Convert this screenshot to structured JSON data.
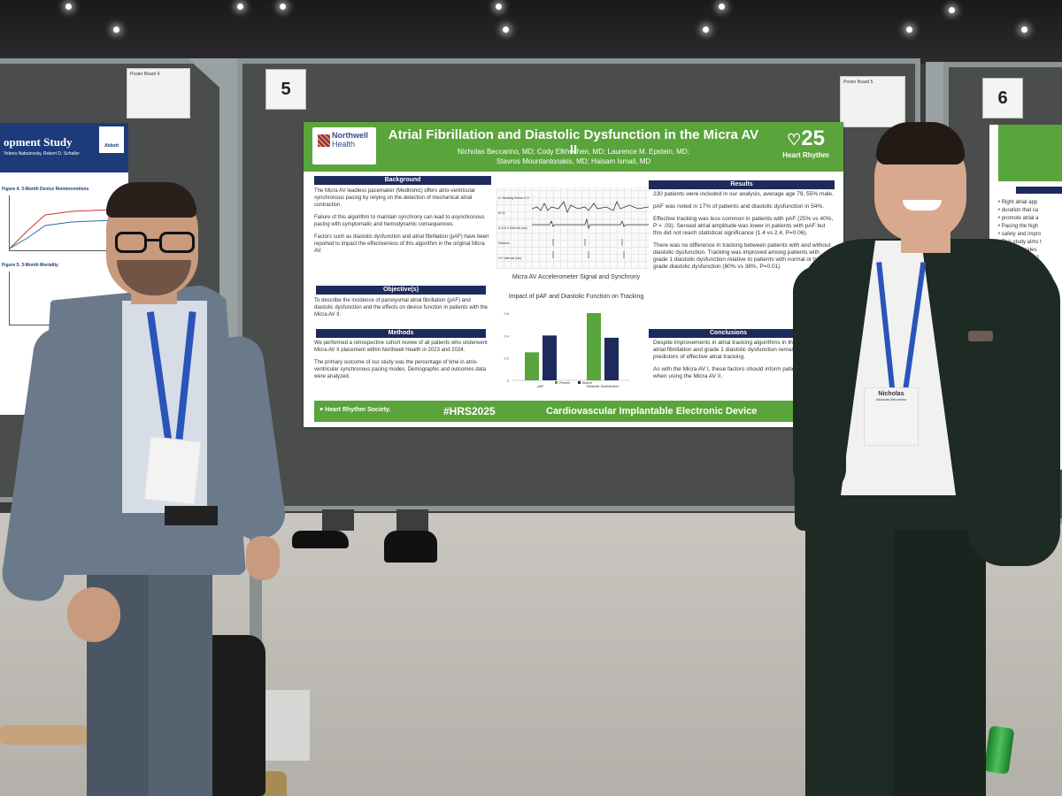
{
  "scene": {
    "left_board_number": "5",
    "right_board_number": "6",
    "left_poster_card_label": "Poster Board 4",
    "right_poster_card_label": "Poster Board 5"
  },
  "left_poster": {
    "title_fragment": "opment Study",
    "authors_fragment": "Yelena Nabutovsky, Robert D. Schaller",
    "sponsor": "Abbott",
    "figure_label_1": "Figure 4. 3-Month Device Reinterventions",
    "figure_label_2": "Figure 5. 3-Month Mortality"
  },
  "poster": {
    "institution_line1": "Northwell",
    "institution_line2": "Health",
    "title": "Atrial Fibrillation and Diastolic Dysfunction in the Micra AV II",
    "authors_line1": "Nicholas Beccarino, MD; Cody Elkhechen, MD; Laurence M. Epstein, MD;",
    "authors_line2": "Stavros Mountantonakis, MD; Haisam Ismail, MD",
    "heart_rhythm_number": "25",
    "heart_rhythm_name": "Heart Rhythm",
    "background_heading": "Background",
    "background_p1": "The Micra AV leadless pacemaker (Medtronic) offers atrio-ventricular synchronous pacing by relying on the detection of mechanical atrial contraction.",
    "background_p2": "Failure of this algorithm to maintain synchrony can lead to asynchronous pacing with symptomatic and hemodynamic consequences.",
    "background_p3": "Factors such as diastolic dysfunction and atrial fibrillation (pAF) have been reported to impact the effectiveness of this algorithm in the original Micra AV.",
    "objectives_heading": "Objective(s)",
    "objectives_text": "To describe the incidence of paroxysmal atrial fibrillation (pAF) and diastolic dysfunction and the effects on device function in patients with the Micra AV II.",
    "methods_heading": "Methods",
    "methods_p1": "We performed a retrospective cohort review of all patients who underwent Micra AV II placement within Northwell Health in 2023 and 2024.",
    "methods_p2": "The primary outcome of our study was the percentage of time in atrio-ventricular synchronous pacing modes. Demographic and outcomes data were analyzed.",
    "figure1_caption": "Micra AV Accelerometer Signal and Synchrony",
    "figure2_caption": "Impact of pAF and Diastolic Function on Tracking",
    "results_heading": "Results",
    "results_p1": "230 patients were included in our analysis, average age 79, 55% male.",
    "results_p2": "pAF was noted in 17% of patients and diastolic dysfunction in 54%.",
    "results_p3": "Effective tracking was less common in patients with pAF (25% vs 40%, P = .03). Sensed atrial amplitude was lower in patients with pAF but this did not reach statistical significance (1.4 vs 2.4, P=0.06).",
    "results_p4": "There was no difference in tracking between patients with and without diastolic dysfunction. Tracking was improved among patients with grade 1 diastolic dysfunction relative to patients with normal or higher-grade diastolic dysfunction (60% vs 38%, P=0.01)",
    "conclusions_heading": "Conclusions",
    "conclusions_p1": "Despite improvements in atrial tracking algorithms in the Micra AV II, atrial fibrillation and grade 1 diastolic dysfunction remain important predictors of effective atrial tracking.",
    "conclusions_p2": "As with the Micra AV I, these factors should inform patient selection when using the Micra AV II.",
    "footer_society": "Heart Rhythm Society.",
    "footer_hashtag": "#HRS2025",
    "footer_track": "Cardiovascular Implantable Electronic Device",
    "ecg_labels": [
      "A. Sensing Vector 1+2",
      "ECG",
      "A-A & V Interval (ms)",
      "Markers",
      "V-V Interval (ms)"
    ],
    "bar_legend": [
      "Present",
      "Absent"
    ],
    "bar_categories": [
      "pAF",
      "Diastolic Dysfunction"
    ],
    "bar_y_ticks": [
      "0.6",
      "0.4",
      "0.2",
      "0"
    ],
    "bar_values": {
      "pAF": [
        0.25,
        0.4
      ],
      "Diastolic Dysfunction": [
        0.6,
        0.38
      ]
    },
    "colors": {
      "present": "#5aa43c",
      "absent": "#1d2a5c"
    }
  },
  "right_poster": {
    "text_fragments": [
      "Right atrial app",
      "duration that ca",
      "promote atrial a",
      "Pacing the high",
      "safety and impro",
      "This study aims t",
      "Compare rates",
      "implants up to 2",
      "Compare diffe"
    ]
  },
  "badge_right": {
    "first_name": "Nicholas",
    "last_name": "Nicholas Beccarino"
  }
}
